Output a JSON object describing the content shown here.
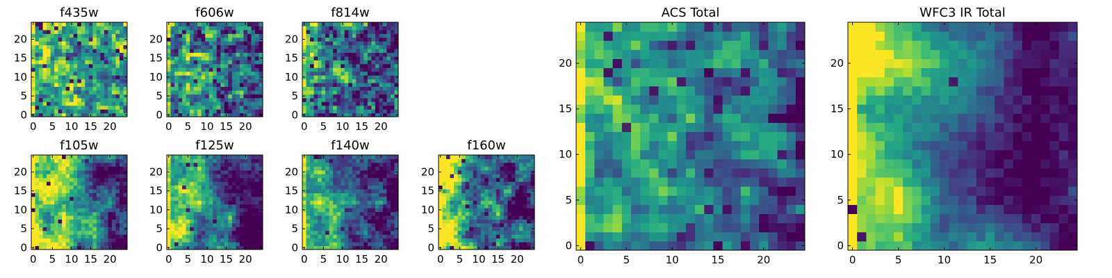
{
  "chart_data": [
    {
      "type": "heatmap",
      "title": "f435w",
      "grid_size": 25,
      "seed": 11,
      "scale": 1.6,
      "bias": 0.62,
      "gradient": 0.05,
      "contrast": 0.9,
      "dark_rate": 0.05,
      "xticks": [
        0,
        5,
        10,
        15,
        20
      ],
      "yticks": [
        0,
        5,
        10,
        15,
        20
      ],
      "xlim": [
        -0.5,
        24.5
      ],
      "ylim": [
        -0.5,
        24.5
      ],
      "colormap": "viridis"
    },
    {
      "type": "heatmap",
      "title": "f606w",
      "grid_size": 25,
      "seed": 23,
      "scale": 1.6,
      "bias": 0.45,
      "gradient": 0.18,
      "contrast": 0.9,
      "dark_rate": 0.07,
      "xticks": [
        0,
        5,
        10,
        15,
        20
      ],
      "yticks": [
        0,
        5,
        10,
        15,
        20
      ],
      "xlim": [
        -0.5,
        24.5
      ],
      "ylim": [
        -0.5,
        24.5
      ],
      "colormap": "viridis"
    },
    {
      "type": "heatmap",
      "title": "f814w",
      "grid_size": 25,
      "seed": 37,
      "scale": 1.6,
      "bias": 0.4,
      "gradient": 0.18,
      "contrast": 0.95,
      "dark_rate": 0.08,
      "xticks": [
        0,
        5,
        10,
        15,
        20
      ],
      "yticks": [
        0,
        5,
        10,
        15,
        20
      ],
      "xlim": [
        -0.5,
        24.5
      ],
      "ylim": [
        -0.5,
        24.5
      ],
      "colormap": "viridis"
    },
    {
      "type": "heatmap",
      "title": "f105w",
      "grid_size": 25,
      "seed": 41,
      "scale": 4,
      "bias": 0.5,
      "gradient": 0.4,
      "contrast": 0.85,
      "dark_rate": 0.02,
      "xticks": [
        0,
        5,
        10,
        15,
        20
      ],
      "yticks": [
        0,
        5,
        10,
        15,
        20
      ],
      "xlim": [
        -0.5,
        24.5
      ],
      "ylim": [
        -0.5,
        24.5
      ],
      "colormap": "viridis"
    },
    {
      "type": "heatmap",
      "title": "f125w",
      "grid_size": 25,
      "seed": 53,
      "scale": 4,
      "bias": 0.48,
      "gradient": 0.42,
      "contrast": 0.85,
      "dark_rate": 0.02,
      "xticks": [
        0,
        5,
        10,
        15,
        20
      ],
      "yticks": [
        0,
        5,
        10,
        15,
        20
      ],
      "xlim": [
        -0.5,
        24.5
      ],
      "ylim": [
        -0.5,
        24.5
      ],
      "colormap": "viridis"
    },
    {
      "type": "heatmap",
      "title": "f140w",
      "grid_size": 25,
      "seed": 67,
      "scale": 4,
      "bias": 0.46,
      "gradient": 0.42,
      "contrast": 0.85,
      "dark_rate": 0.02,
      "xticks": [
        0,
        5,
        10,
        15,
        20
      ],
      "yticks": [
        0,
        5,
        10,
        15,
        20
      ],
      "xlim": [
        -0.5,
        24.5
      ],
      "ylim": [
        -0.5,
        24.5
      ],
      "colormap": "viridis"
    },
    {
      "type": "heatmap",
      "title": "f160w",
      "grid_size": 25,
      "seed": 79,
      "scale": 3,
      "bias": 0.5,
      "gradient": 0.45,
      "contrast": 0.95,
      "dark_rate": 0.03,
      "xticks": [
        0,
        5,
        10,
        15,
        20
      ],
      "yticks": [
        0,
        5,
        10,
        15,
        20
      ],
      "xlim": [
        -0.5,
        24.5
      ],
      "ylim": [
        -0.5,
        24.5
      ],
      "colormap": "viridis"
    },
    {
      "type": "heatmap",
      "title": "ACS Total",
      "grid_size": 25,
      "seed": 97,
      "scale": 2,
      "bias": 0.45,
      "gradient": 0.22,
      "contrast": 0.6,
      "dark_rate": 0.04,
      "xticks": [
        0,
        5,
        10,
        15,
        20
      ],
      "yticks": [
        0,
        5,
        10,
        15,
        20
      ],
      "xlim": [
        -0.5,
        24.5
      ],
      "ylim": [
        -0.5,
        24.5
      ],
      "colormap": "viridis"
    },
    {
      "type": "heatmap",
      "title": "WFC3 IR Total",
      "grid_size": 25,
      "seed": 113,
      "scale": 5,
      "bias": 0.45,
      "gradient": 0.45,
      "contrast": 0.55,
      "dark_rate": 0.01,
      "xticks": [
        0,
        5,
        10,
        15,
        20
      ],
      "yticks": [
        0,
        5,
        10,
        15,
        20
      ],
      "xlim": [
        -0.5,
        24.5
      ],
      "ylim": [
        -0.5,
        24.5
      ],
      "colormap": "viridis"
    }
  ]
}
